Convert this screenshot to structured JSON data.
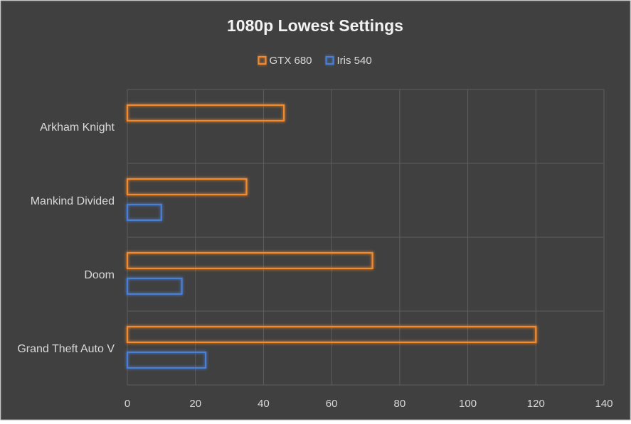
{
  "chart_data": {
    "type": "bar",
    "orientation": "horizontal",
    "title": "1080p Lowest Settings",
    "xlabel": "",
    "ylabel": "",
    "categories": [
      "Arkham Knight",
      "Mankind Divided",
      "Doom",
      "Grand Theft Auto V"
    ],
    "series": [
      {
        "name": "GTX 680",
        "color": "#f58a2c",
        "values": [
          46,
          35,
          72,
          120
        ]
      },
      {
        "name": "Iris 540",
        "color": "#4a7fd6",
        "values": [
          null,
          10,
          16,
          23
        ]
      }
    ],
    "xlim": [
      0,
      140
    ],
    "x_ticks": [
      0,
      20,
      40,
      60,
      80,
      100,
      120,
      140
    ],
    "grid": true,
    "legend_position": "top",
    "background_color": "#404040",
    "grid_color": "#5e5e5e",
    "text_color": "#d9d9d9",
    "title_color": "#f2f2f2",
    "bar_style": "outlined-glow"
  }
}
